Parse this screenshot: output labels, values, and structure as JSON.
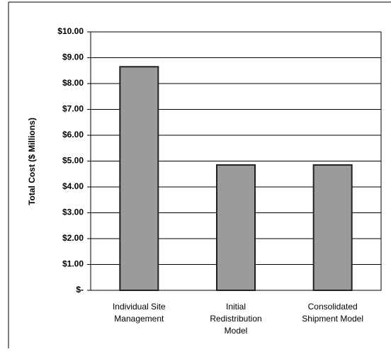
{
  "chart_data": {
    "type": "bar",
    "y_label": "Total Cost ($ Millions)",
    "categories": [
      "Individual Site Management",
      "Initial Redistribution Model",
      "Consolidated Shipment Model"
    ],
    "values": [
      8.65,
      4.85,
      4.85
    ],
    "color": "#9b9b9b",
    "ylim": [
      0,
      10
    ],
    "yticks": [
      {
        "value": 0,
        "label": "$-"
      },
      {
        "value": 1,
        "label": "$1.00"
      },
      {
        "value": 2,
        "label": "$2.00"
      },
      {
        "value": 3,
        "label": "$3.00"
      },
      {
        "value": 4,
        "label": "$4.00"
      },
      {
        "value": 5,
        "label": "$5.00"
      },
      {
        "value": 6,
        "label": "$6.00"
      },
      {
        "value": 7,
        "label": "$7.00"
      },
      {
        "value": 8,
        "label": "$8.00"
      },
      {
        "value": 9,
        "label": "$9.00"
      },
      {
        "value": 10,
        "label": "$10.00"
      }
    ],
    "grid": true
  }
}
